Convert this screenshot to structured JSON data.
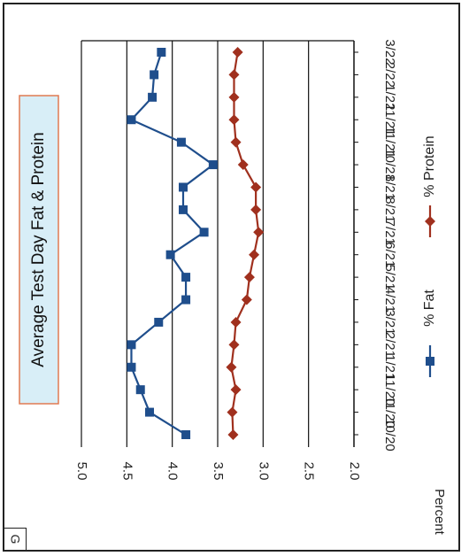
{
  "panel_label": "G",
  "chart_data": {
    "type": "line",
    "title": "Average Test Day Fat & Protein",
    "ylabel": "Percent",
    "xlabel": "",
    "ylim": [
      2.0,
      5.0
    ],
    "yticks": [
      "5.0",
      "4.5",
      "4.0",
      "3.5",
      "3.0",
      "2.5",
      "2.0"
    ],
    "ytick_values": [
      5.0,
      4.5,
      4.0,
      3.5,
      3.0,
      2.5,
      2.0
    ],
    "gridlines_at": [
      4.5,
      4.0,
      3.5,
      3.0,
      2.5
    ],
    "grid": true,
    "orientation": "rotated 90 degrees clockwise",
    "categories": [
      "10/20",
      "11/20",
      "11/20",
      "1/21",
      "2/21",
      "3/21",
      "4/21",
      "5/21",
      "6/21",
      "7/21",
      "8/21",
      "8/21",
      "10/21",
      "11/21",
      "11/21",
      "1/22",
      "2/22",
      "3/22"
    ],
    "series": [
      {
        "name": "% Fat",
        "color": "#1f4e8c",
        "marker": "square",
        "values": [
          3.85,
          4.25,
          4.35,
          4.45,
          4.45,
          4.15,
          3.85,
          3.85,
          4.02,
          3.65,
          3.88,
          3.88,
          3.55,
          3.9,
          4.45,
          4.22,
          4.2,
          4.12
        ]
      },
      {
        "name": "% Protein",
        "color": "#a0301e",
        "marker": "diamond",
        "values": [
          3.33,
          3.34,
          3.3,
          3.35,
          3.32,
          3.3,
          3.18,
          3.15,
          3.1,
          3.05,
          3.08,
          3.08,
          3.22,
          3.3,
          3.32,
          3.32,
          3.32,
          3.28
        ]
      }
    ],
    "legend_position": "bottom-center"
  }
}
